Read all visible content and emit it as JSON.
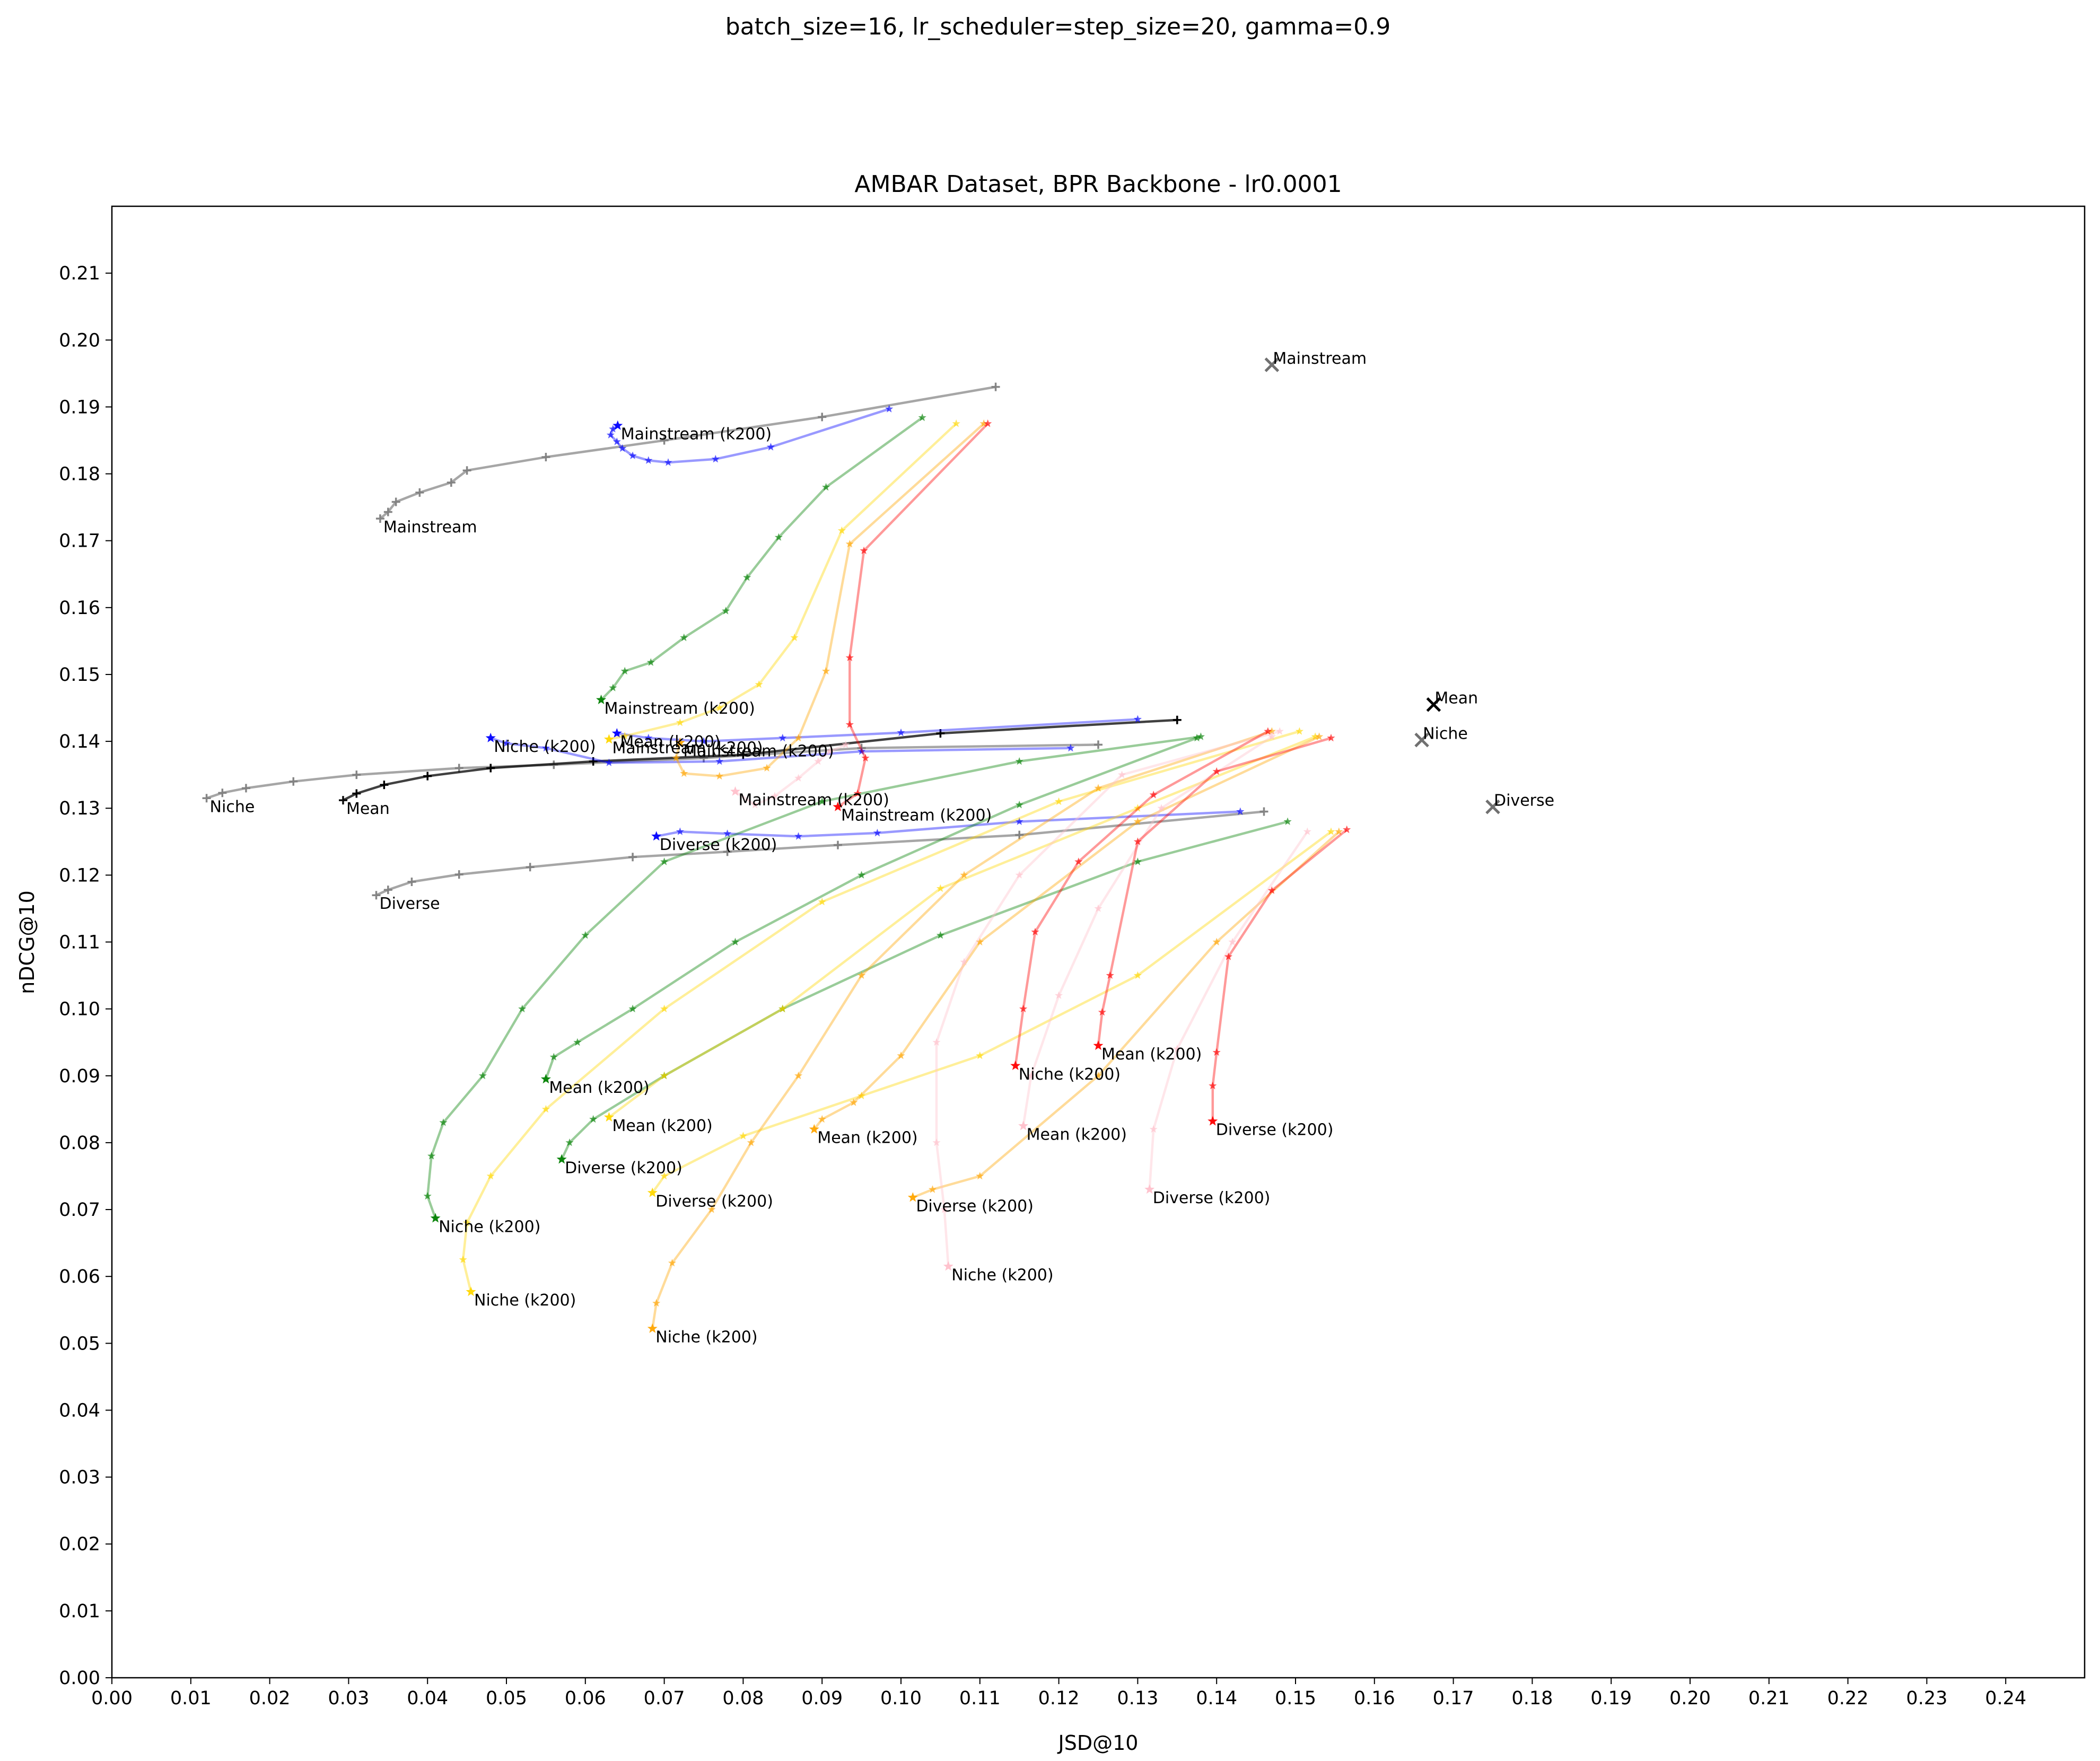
{
  "chart_data": {
    "type": "line",
    "suptitle": "batch_size=16, lr_scheduler=step_size=20, gamma=0.9",
    "title": "AMBAR Dataset, BPR Backbone - lr0.0001",
    "xlabel": "JSD@10",
    "ylabel": "nDCG@10",
    "xlim": [
      0.0,
      0.25
    ],
    "ylim": [
      0.0,
      0.22
    ],
    "x_ticks": [
      "0.00",
      "0.01",
      "0.02",
      "0.03",
      "0.04",
      "0.05",
      "0.06",
      "0.07",
      "0.08",
      "0.09",
      "0.10",
      "0.11",
      "0.12",
      "0.13",
      "0.14",
      "0.15",
      "0.16",
      "0.17",
      "0.18",
      "0.19",
      "0.20",
      "0.21",
      "0.22",
      "0.23",
      "0.24"
    ],
    "y_ticks": [
      "0.00",
      "0.01",
      "0.02",
      "0.03",
      "0.04",
      "0.05",
      "0.06",
      "0.07",
      "0.08",
      "0.09",
      "0.10",
      "0.11",
      "0.12",
      "0.13",
      "0.14",
      "0.15",
      "0.16",
      "0.17",
      "0.18",
      "0.19",
      "0.20",
      "0.21"
    ],
    "grid": false,
    "legend": "none",
    "series": [
      {
        "color": "#808080",
        "marker": "+",
        "label": "Mainstream",
        "points": [
          [
            0.112,
            0.193
          ],
          [
            0.09,
            0.1885
          ],
          [
            0.07,
            0.185
          ],
          [
            0.055,
            0.1825
          ],
          [
            0.045,
            0.1805
          ],
          [
            0.043,
            0.1787
          ],
          [
            0.039,
            0.1772
          ],
          [
            0.036,
            0.1758
          ],
          [
            0.035,
            0.1743
          ],
          [
            0.034,
            0.1733
          ]
        ]
      },
      {
        "color": "#808080",
        "marker": "+",
        "label": "Niche",
        "points": [
          [
            0.125,
            0.1395
          ],
          [
            0.095,
            0.139
          ],
          [
            0.075,
            0.1375
          ],
          [
            0.056,
            0.1365
          ],
          [
            0.044,
            0.136
          ],
          [
            0.031,
            0.135
          ],
          [
            0.023,
            0.134
          ],
          [
            0.017,
            0.133
          ],
          [
            0.014,
            0.1323
          ],
          [
            0.012,
            0.1315
          ]
        ]
      },
      {
        "color": "#808080",
        "marker": "+",
        "label": "Diverse",
        "points": [
          [
            0.146,
            0.1295
          ],
          [
            0.115,
            0.126
          ],
          [
            0.092,
            0.1245
          ],
          [
            0.078,
            0.1235
          ],
          [
            0.066,
            0.1227
          ],
          [
            0.053,
            0.1212
          ],
          [
            0.044,
            0.1201
          ],
          [
            0.038,
            0.119
          ],
          [
            0.035,
            0.1178
          ],
          [
            0.0335,
            0.117
          ]
        ]
      },
      {
        "color": "#000000",
        "marker": "+",
        "label": "Mean",
        "points": [
          [
            0.135,
            0.1432
          ],
          [
            0.105,
            0.1412
          ],
          [
            0.08,
            0.138
          ],
          [
            0.061,
            0.137
          ],
          [
            0.048,
            0.136
          ],
          [
            0.04,
            0.1348
          ],
          [
            0.0345,
            0.1335
          ],
          [
            0.031,
            0.1322
          ],
          [
            0.0293,
            0.1312
          ]
        ]
      },
      {
        "color": "#0000ff",
        "marker": "*",
        "label": "Mainstream (k200)",
        "points": [
          [
            0.0985,
            0.1897
          ],
          [
            0.0835,
            0.184
          ],
          [
            0.0765,
            0.1822
          ],
          [
            0.0705,
            0.1817
          ],
          [
            0.068,
            0.182
          ],
          [
            0.066,
            0.1827
          ],
          [
            0.0647,
            0.1838
          ],
          [
            0.064,
            0.1848
          ],
          [
            0.0632,
            0.1858
          ],
          [
            0.0635,
            0.1867
          ],
          [
            0.0641,
            0.1872
          ]
        ]
      },
      {
        "color": "#0000ff",
        "marker": "*",
        "label": "Niche (k200)",
        "points": [
          [
            0.1215,
            0.139
          ],
          [
            0.095,
            0.1385
          ],
          [
            0.077,
            0.137
          ],
          [
            0.063,
            0.1368
          ],
          [
            0.055,
            0.139
          ],
          [
            0.05,
            0.1397
          ],
          [
            0.048,
            0.1405
          ]
        ]
      },
      {
        "color": "#0000ff",
        "marker": "*",
        "label": "Diverse (k200)",
        "points": [
          [
            0.143,
            0.1295
          ],
          [
            0.115,
            0.128
          ],
          [
            0.097,
            0.1263
          ],
          [
            0.087,
            0.1258
          ],
          [
            0.078,
            0.1262
          ],
          [
            0.072,
            0.1265
          ],
          [
            0.069,
            0.1258
          ]
        ]
      },
      {
        "color": "#0000ff",
        "marker": "*",
        "label": "Mean (k200)",
        "points": [
          [
            0.13,
            0.1433
          ],
          [
            0.1,
            0.1413
          ],
          [
            0.085,
            0.1405
          ],
          [
            0.075,
            0.14
          ],
          [
            0.068,
            0.1405
          ],
          [
            0.064,
            0.1412
          ]
        ]
      },
      {
        "color": "#008000",
        "marker": "*",
        "label": "Mainstream (k200)",
        "points": [
          [
            0.1027,
            0.1884
          ],
          [
            0.0905,
            0.178
          ],
          [
            0.0845,
            0.1705
          ],
          [
            0.0805,
            0.1645
          ],
          [
            0.0778,
            0.1595
          ],
          [
            0.0725,
            0.1555
          ],
          [
            0.0683,
            0.1518
          ],
          [
            0.065,
            0.1505
          ],
          [
            0.0635,
            0.148
          ],
          [
            0.062,
            0.1462
          ]
        ]
      },
      {
        "color": "#008000",
        "marker": "*",
        "label": "Niche (k200)",
        "points": [
          [
            0.138,
            0.1407
          ],
          [
            0.115,
            0.137
          ],
          [
            0.09,
            0.131
          ],
          [
            0.07,
            0.122
          ],
          [
            0.06,
            0.111
          ],
          [
            0.052,
            0.1
          ],
          [
            0.047,
            0.09
          ],
          [
            0.042,
            0.083
          ],
          [
            0.0405,
            0.078
          ],
          [
            0.04,
            0.072
          ],
          [
            0.041,
            0.0687
          ]
        ]
      },
      {
        "color": "#008000",
        "marker": "*",
        "label": "Mean (k200)",
        "points": [
          [
            0.1375,
            0.1405
          ],
          [
            0.115,
            0.1305
          ],
          [
            0.095,
            0.12
          ],
          [
            0.079,
            0.11
          ],
          [
            0.066,
            0.1
          ],
          [
            0.059,
            0.095
          ],
          [
            0.056,
            0.0928
          ],
          [
            0.055,
            0.0895
          ]
        ]
      },
      {
        "color": "#008000",
        "marker": "*",
        "label": "Diverse (k200)",
        "points": [
          [
            0.149,
            0.128
          ],
          [
            0.13,
            0.122
          ],
          [
            0.105,
            0.111
          ],
          [
            0.085,
            0.1
          ],
          [
            0.07,
            0.09
          ],
          [
            0.061,
            0.0835
          ],
          [
            0.058,
            0.08
          ],
          [
            0.057,
            0.0775
          ]
        ]
      },
      {
        "color": "#ffd700",
        "marker": "*",
        "label": "Mainstream (k200)",
        "points": [
          [
            0.107,
            0.1875
          ],
          [
            0.0925,
            0.1715
          ],
          [
            0.0865,
            0.1555
          ],
          [
            0.082,
            0.1485
          ],
          [
            0.077,
            0.145
          ],
          [
            0.072,
            0.1428
          ],
          [
            0.065,
            0.1408
          ],
          [
            0.063,
            0.1403
          ]
        ]
      },
      {
        "color": "#ffd700",
        "marker": "*",
        "label": "Niche (k200)",
        "points": [
          [
            0.1505,
            0.1415
          ],
          [
            0.12,
            0.131
          ],
          [
            0.09,
            0.116
          ],
          [
            0.07,
            0.1
          ],
          [
            0.055,
            0.085
          ],
          [
            0.048,
            0.075
          ],
          [
            0.045,
            0.068
          ],
          [
            0.0445,
            0.0625
          ],
          [
            0.0455,
            0.0577
          ]
        ]
      },
      {
        "color": "#ffd700",
        "marker": "*",
        "label": "Mean (k200)",
        "points": [
          [
            0.1525,
            0.1407
          ],
          [
            0.13,
            0.13
          ],
          [
            0.105,
            0.118
          ],
          [
            0.085,
            0.1
          ],
          [
            0.07,
            0.09
          ],
          [
            0.063,
            0.0838
          ]
        ]
      },
      {
        "color": "#ffd700",
        "marker": "*",
        "label": "Diverse (k200)",
        "points": [
          [
            0.1545,
            0.1265
          ],
          [
            0.13,
            0.105
          ],
          [
            0.11,
            0.093
          ],
          [
            0.095,
            0.087
          ],
          [
            0.08,
            0.081
          ],
          [
            0.07,
            0.075
          ],
          [
            0.0685,
            0.0725
          ]
        ]
      },
      {
        "color": "#ffa500",
        "marker": "*",
        "label": "Mainstream (k200)",
        "points": [
          [
            0.1105,
            0.1875
          ],
          [
            0.0935,
            0.1695
          ],
          [
            0.0905,
            0.1505
          ],
          [
            0.087,
            0.1405
          ],
          [
            0.083,
            0.136
          ],
          [
            0.077,
            0.1348
          ],
          [
            0.0725,
            0.1352
          ],
          [
            0.0715,
            0.1375
          ],
          [
            0.072,
            0.1398
          ]
        ]
      },
      {
        "color": "#ffa500",
        "marker": "*",
        "label": "Niche (k200)",
        "points": [
          [
            0.147,
            0.1415
          ],
          [
            0.125,
            0.133
          ],
          [
            0.108,
            0.12
          ],
          [
            0.095,
            0.105
          ],
          [
            0.087,
            0.09
          ],
          [
            0.081,
            0.08
          ],
          [
            0.076,
            0.07
          ],
          [
            0.071,
            0.062
          ],
          [
            0.069,
            0.056
          ],
          [
            0.0685,
            0.0522
          ]
        ]
      },
      {
        "color": "#ffa500",
        "marker": "*",
        "label": "Mean (k200)",
        "points": [
          [
            0.153,
            0.1407
          ],
          [
            0.13,
            0.128
          ],
          [
            0.11,
            0.11
          ],
          [
            0.1,
            0.093
          ],
          [
            0.094,
            0.086
          ],
          [
            0.09,
            0.0835
          ],
          [
            0.089,
            0.082
          ]
        ]
      },
      {
        "color": "#ffa500",
        "marker": "*",
        "label": "Diverse (k200)",
        "points": [
          [
            0.1555,
            0.1265
          ],
          [
            0.14,
            0.11
          ],
          [
            0.125,
            0.09
          ],
          [
            0.11,
            0.075
          ],
          [
            0.104,
            0.073
          ],
          [
            0.1015,
            0.0718
          ]
        ]
      },
      {
        "color": "#ffc0cb",
        "marker": "*",
        "label": "Mainstream (k200)",
        "points": [
          [
            0.093,
            0.1395
          ],
          [
            0.091,
            0.1385
          ],
          [
            0.0895,
            0.137
          ],
          [
            0.087,
            0.1345
          ],
          [
            0.084,
            0.1318
          ],
          [
            0.0815,
            0.1305
          ],
          [
            0.079,
            0.1325
          ]
        ]
      },
      {
        "color": "#ffc0cb",
        "marker": "*",
        "label": "Niche (k200)",
        "points": [
          [
            0.148,
            0.1415
          ],
          [
            0.128,
            0.135
          ],
          [
            0.115,
            0.12
          ],
          [
            0.108,
            0.107
          ],
          [
            0.1045,
            0.095
          ],
          [
            0.1045,
            0.08
          ],
          [
            0.1055,
            0.07
          ],
          [
            0.106,
            0.0615
          ]
        ]
      },
      {
        "color": "#ffc0cb",
        "marker": "*",
        "label": "Mean (k200)",
        "points": [
          [
            0.147,
            0.1407
          ],
          [
            0.133,
            0.13
          ],
          [
            0.125,
            0.115
          ],
          [
            0.12,
            0.102
          ],
          [
            0.1165,
            0.09
          ],
          [
            0.1155,
            0.0825
          ]
        ]
      },
      {
        "color": "#ffc0cb",
        "marker": "*",
        "label": "Diverse (k200)",
        "points": [
          [
            0.1515,
            0.1265
          ],
          [
            0.142,
            0.11
          ],
          [
            0.135,
            0.094
          ],
          [
            0.132,
            0.082
          ],
          [
            0.1315,
            0.073
          ]
        ]
      },
      {
        "color": "#ff0000",
        "marker": "*",
        "label": "Mainstream (k200)",
        "points": [
          [
            0.111,
            0.1875
          ],
          [
            0.0953,
            0.1685
          ],
          [
            0.0935,
            0.1525
          ],
          [
            0.0935,
            0.1425
          ],
          [
            0.0955,
            0.1375
          ],
          [
            0.0945,
            0.1322
          ],
          [
            0.092,
            0.1302
          ]
        ]
      },
      {
        "color": "#ff0000",
        "marker": "*",
        "label": "Niche (k200)",
        "points": [
          [
            0.1465,
            0.1415
          ],
          [
            0.132,
            0.132
          ],
          [
            0.1225,
            0.122
          ],
          [
            0.117,
            0.1115
          ],
          [
            0.1155,
            0.1
          ],
          [
            0.1145,
            0.0915
          ]
        ]
      },
      {
        "color": "#ff0000",
        "marker": "*",
        "label": "Mean (k200)",
        "points": [
          [
            0.1545,
            0.1405
          ],
          [
            0.14,
            0.1355
          ],
          [
            0.13,
            0.125
          ],
          [
            0.1265,
            0.105
          ],
          [
            0.1255,
            0.0995
          ],
          [
            0.125,
            0.0945
          ]
        ]
      },
      {
        "color": "#ff0000",
        "marker": "*",
        "label": "Diverse (k200)",
        "points": [
          [
            0.1565,
            0.1268
          ],
          [
            0.147,
            0.1177
          ],
          [
            0.1415,
            0.1078
          ],
          [
            0.14,
            0.0935
          ],
          [
            0.1395,
            0.0885
          ],
          [
            0.1395,
            0.0832
          ]
        ]
      }
    ],
    "reference_points": [
      {
        "x": 0.147,
        "y": 0.1963,
        "label": "Mainstream",
        "color": "#707070"
      },
      {
        "x": 0.1675,
        "y": 0.1455,
        "label": "Mean",
        "color": "#000000"
      },
      {
        "x": 0.166,
        "y": 0.1402,
        "label": "Niche",
        "color": "#707070"
      },
      {
        "x": 0.175,
        "y": 0.1302,
        "label": "Diverse",
        "color": "#707070"
      }
    ]
  }
}
